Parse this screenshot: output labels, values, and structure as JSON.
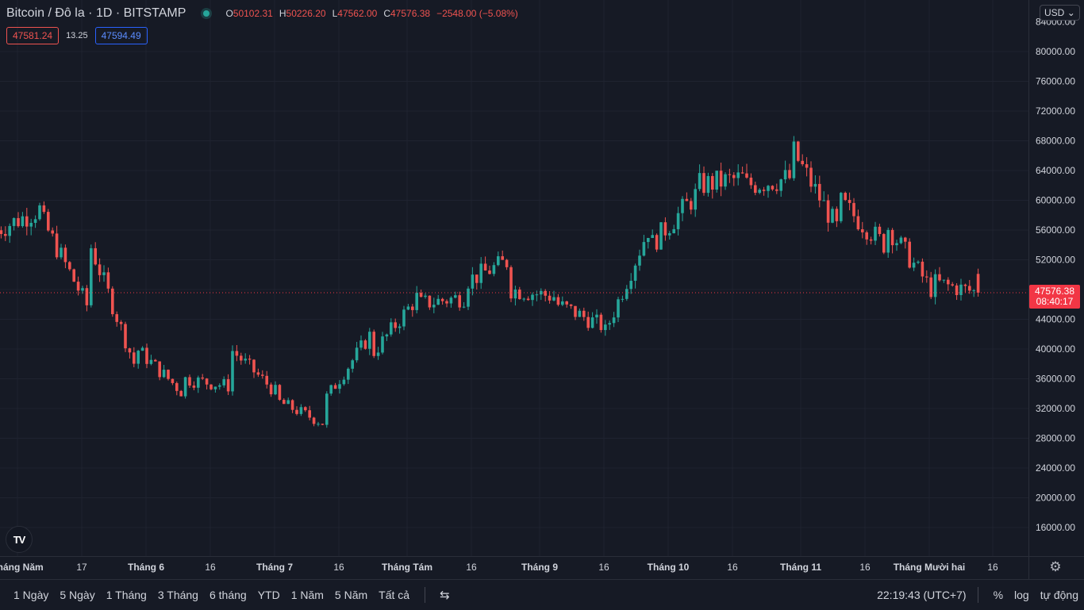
{
  "legend": {
    "symbol": "Bitcoin / Đô la",
    "interval": "1D",
    "exchange": "BITSTAMP",
    "open_label": "O",
    "open": "50102.31",
    "high_label": "H",
    "high": "50226.20",
    "low_label": "L",
    "low": "47562.00",
    "close_label": "C",
    "close": "47576.38",
    "change": "−2548.00 (−5.08%)"
  },
  "quote": {
    "bid": "47581.24",
    "spread": "13.25",
    "ask": "47594.49"
  },
  "currency": "USD",
  "last_price": {
    "price": "47576.38",
    "countdown": "08:40:17"
  },
  "logo_text": "TV",
  "colors": {
    "up": "#26a69a",
    "down": "#ef5350",
    "background": "#161a25",
    "grid": "#1f2330",
    "price_line": "#f23645"
  },
  "chart_data": {
    "type": "candlestick",
    "ylim": [
      12000,
      84000
    ],
    "y_ticks": [
      16000,
      20000,
      24000,
      28000,
      32000,
      36000,
      40000,
      44000,
      48000,
      52000,
      56000,
      60000,
      64000,
      68000,
      72000,
      76000,
      80000
    ],
    "y_tick_labels": [
      "16000.00",
      "20000.00",
      "24000.00",
      "28000.00",
      "32000.00",
      "36000.00",
      "40000.00",
      "44000.00",
      "48000.00",
      "52000.00",
      "56000.00",
      "60000.00",
      "64000.00",
      "68000.00",
      "72000.00",
      "76000.00",
      "80000.00"
    ],
    "top_partial_label": "84000.00",
    "x_ticks": [
      "Tháng Năm",
      "17",
      "Tháng 6",
      "16",
      "Tháng 7",
      "16",
      "Tháng Tám",
      "16",
      "Tháng 9",
      "16",
      "Tháng 10",
      "16",
      "Tháng 11",
      "16",
      "Tháng Mười hai",
      "16"
    ],
    "waypoints": [
      [
        56000,
        58000
      ],
      [
        57000,
        59000
      ],
      [
        54000,
        45000
      ],
      [
        40000,
        37000
      ],
      [
        36000,
        34000
      ],
      [
        40000,
        35000
      ],
      [
        33000,
        34000
      ],
      [
        33000,
        30000
      ],
      [
        39000,
        42000
      ],
      [
        46000,
        47000
      ],
      [
        49000,
        47000
      ],
      [
        48000,
        52000
      ],
      [
        46000,
        47000
      ],
      [
        42000,
        43000
      ],
      [
        54000,
        57000
      ],
      [
        62000,
        61000
      ],
      [
        62000,
        63000
      ],
      [
        67000,
        63000
      ],
      [
        60000,
        56000
      ],
      [
        57000,
        54000
      ],
      [
        49000,
        48000
      ],
      [
        50000,
        47576
      ]
    ]
  },
  "bottom": {
    "ranges": [
      "1 Ngày",
      "5 Ngày",
      "1 Tháng",
      "3 Tháng",
      "6 tháng",
      "YTD",
      "1 Năm",
      "5 Năm",
      "Tất cả"
    ],
    "time": "22:19:43 (UTC+7)",
    "percent": "%",
    "log": "log",
    "auto": "tự động"
  }
}
